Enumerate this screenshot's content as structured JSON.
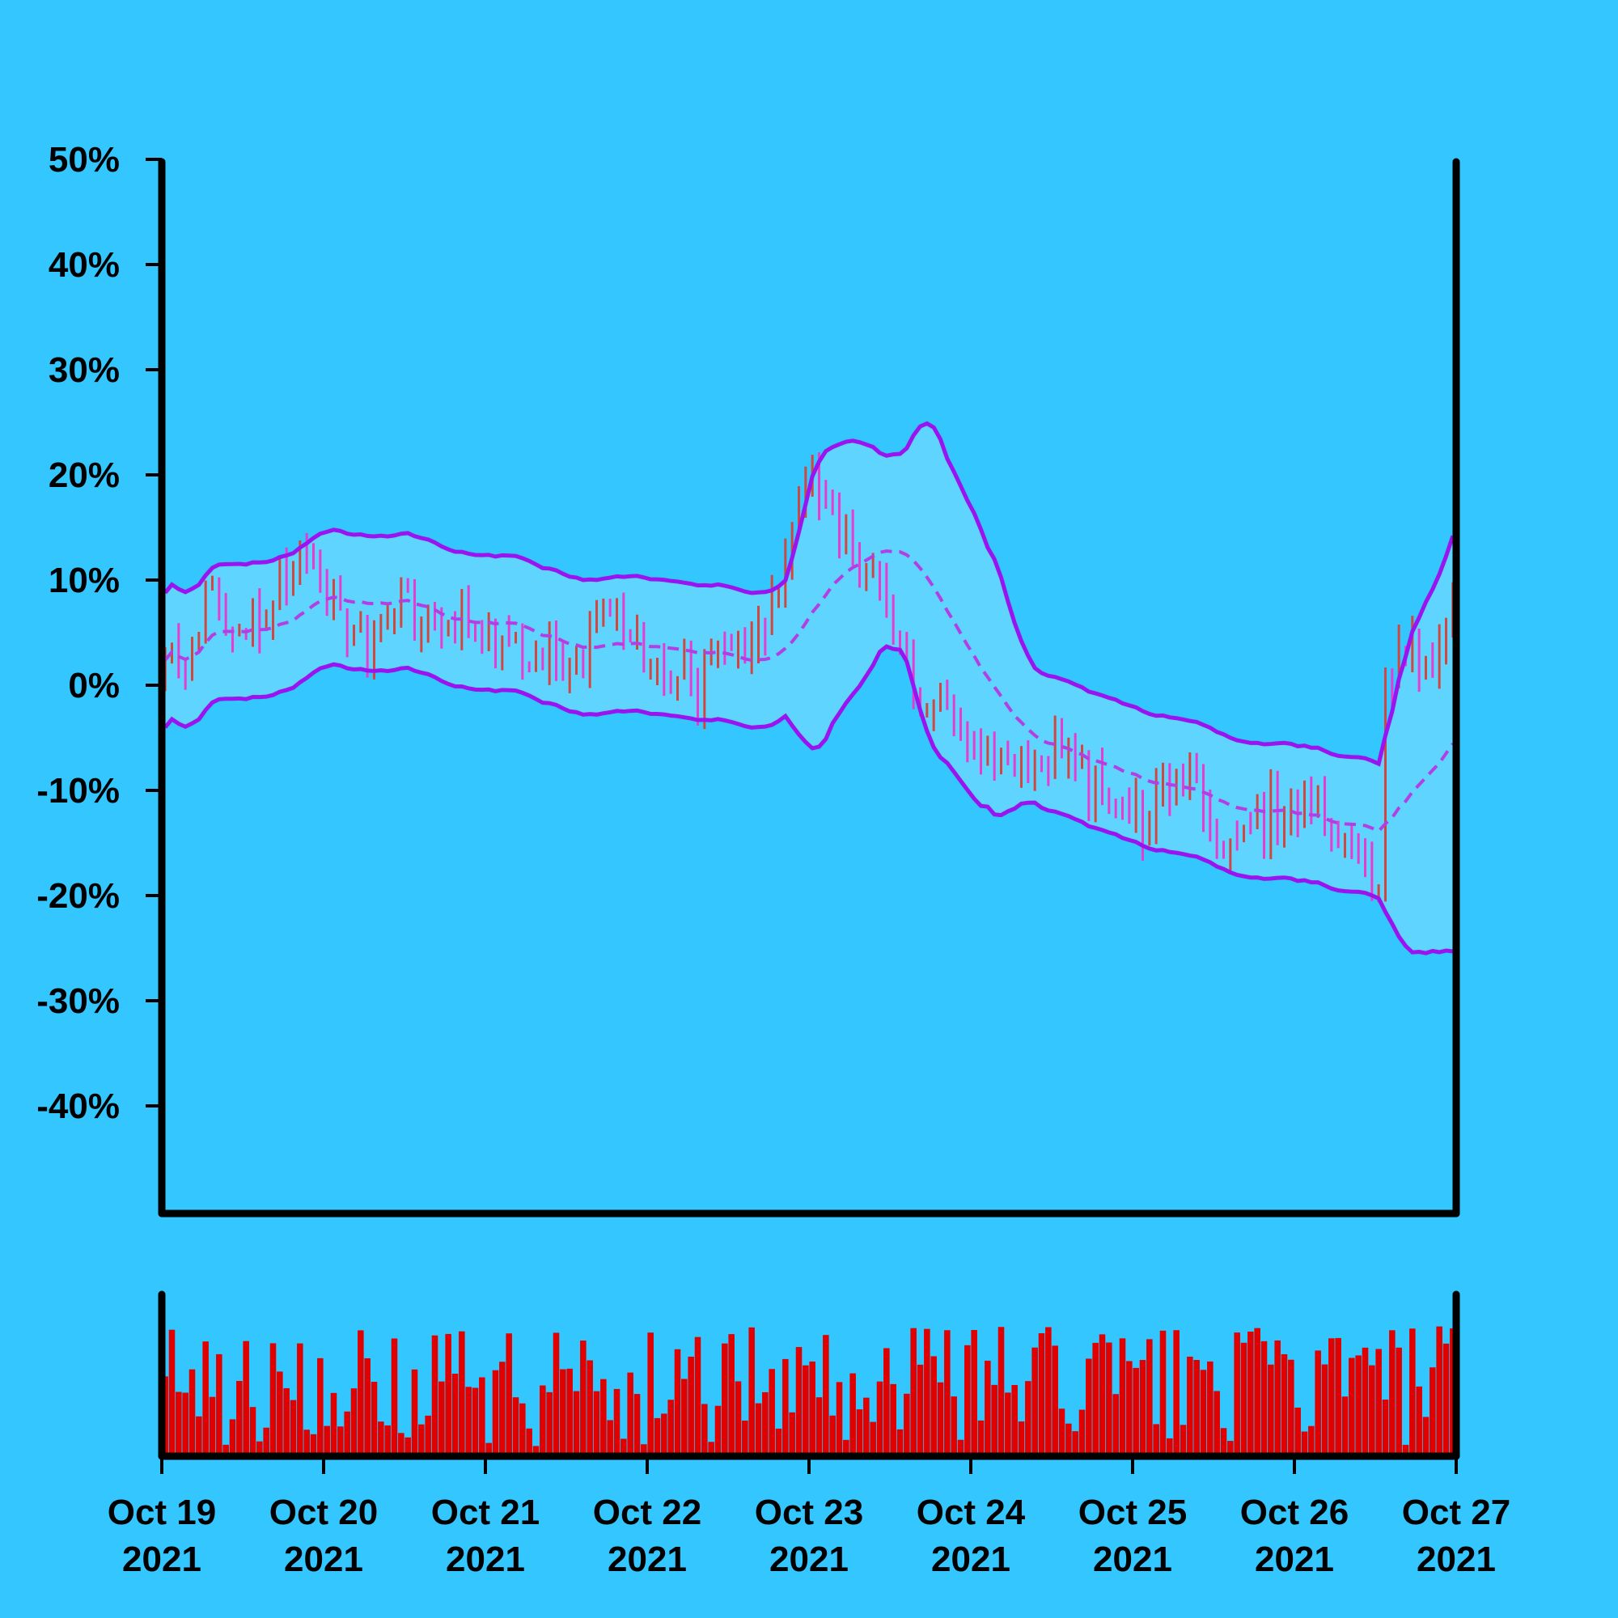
{
  "colors": {
    "background": "#33c6ff",
    "band_fill": "#5fd4ff",
    "band_line": "#9a14f0",
    "mid_line": "#b23ee6",
    "bar_up": "#d0473f",
    "bar_down": "#e63cd2",
    "volume": "#e00000",
    "axis": "#000000"
  },
  "chart_data": [
    {
      "type": "ohlc",
      "x_start": "2021-10-19 00:00",
      "interval_hours": 1,
      "y_unit": "%",
      "ylim": [
        -45,
        55
      ],
      "yticks": [
        50,
        40,
        30,
        20,
        10,
        0,
        -10,
        -20,
        -30,
        -40
      ],
      "ytick_labels": [
        "50%",
        "40%",
        "30%",
        "20%",
        "10%",
        "0%",
        "-10%",
        "-20%",
        "-30%",
        "-40%"
      ],
      "grid": false,
      "indicator": "bollinger bands (upper, middle dashed, lower)",
      "anchors": [
        [
          0,
          0.5
        ],
        [
          6,
          4
        ],
        [
          10,
          9
        ],
        [
          16,
          6
        ],
        [
          22,
          9
        ],
        [
          28,
          11
        ],
        [
          34,
          8
        ],
        [
          40,
          4
        ],
        [
          44,
          8
        ],
        [
          48,
          7
        ],
        [
          54,
          6
        ],
        [
          60,
          5
        ],
        [
          66,
          3
        ],
        [
          72,
          4
        ],
        [
          78,
          2
        ],
        [
          84,
          7
        ],
        [
          90,
          5
        ],
        [
          96,
          1
        ],
        [
          102,
          0
        ],
        [
          108,
          3
        ],
        [
          114,
          6
        ],
        [
          118,
          10
        ],
        [
          121,
          17
        ],
        [
          124,
          21
        ],
        [
          129,
          16
        ],
        [
          133,
          12
        ],
        [
          136,
          9
        ],
        [
          139,
          5
        ],
        [
          141,
          1
        ],
        [
          144,
          -2
        ],
        [
          148,
          0
        ],
        [
          152,
          -4
        ],
        [
          156,
          -6
        ],
        [
          162,
          -7
        ],
        [
          168,
          -6
        ],
        [
          174,
          -9
        ],
        [
          180,
          -10
        ],
        [
          186,
          -13
        ],
        [
          192,
          -8
        ],
        [
          198,
          -12
        ],
        [
          204,
          -17
        ],
        [
          210,
          -12
        ],
        [
          216,
          -10
        ],
        [
          222,
          -13
        ],
        [
          228,
          -17
        ],
        [
          231,
          -19
        ],
        [
          232,
          2
        ],
        [
          240,
          3
        ],
        [
          245,
          6
        ]
      ]
    },
    {
      "type": "bar",
      "series": "volume",
      "x_start": "2021-10-19 00:00",
      "interval_hours": 1
    }
  ],
  "x_axis": {
    "ticks": [
      {
        "date": "Oct 19",
        "year": "2021"
      },
      {
        "date": "Oct 20",
        "year": "2021"
      },
      {
        "date": "Oct 21",
        "year": "2021"
      },
      {
        "date": "Oct 22",
        "year": "2021"
      },
      {
        "date": "Oct 23",
        "year": "2021"
      },
      {
        "date": "Oct 24",
        "year": "2021"
      },
      {
        "date": "Oct 25",
        "year": "2021"
      },
      {
        "date": "Oct 26",
        "year": "2021"
      },
      {
        "date": "Oct 27",
        "year": "2021"
      }
    ]
  }
}
